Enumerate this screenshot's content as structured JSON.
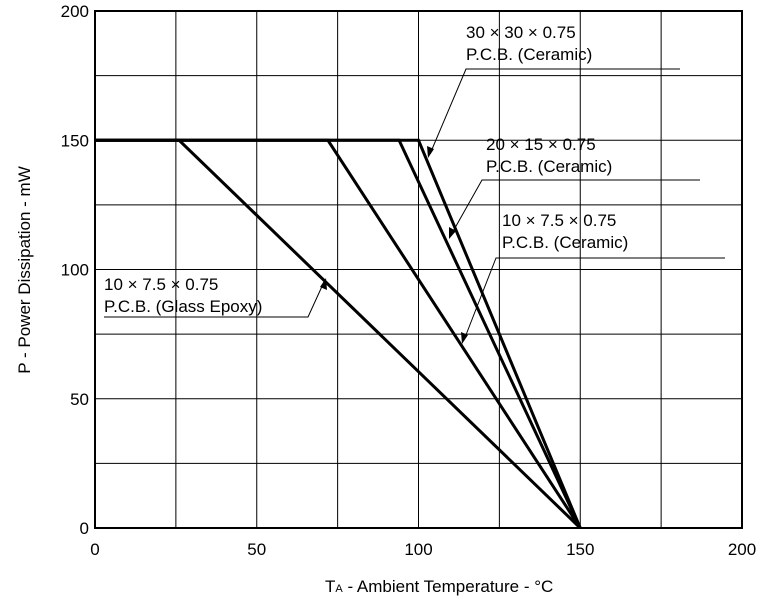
{
  "chart_data": {
    "type": "line",
    "title": "",
    "xlabel_prefix": "T",
    "xlabel_sub": "A",
    "xlabel_rest": " -  Ambient Temperature  - °C",
    "ylabel": "P -  Power Dissipation  - mW",
    "xlim": [
      0,
      200
    ],
    "ylim": [
      0,
      200
    ],
    "xticks": [
      0,
      50,
      100,
      150,
      200
    ],
    "yticks": [
      0,
      50,
      100,
      150,
      200
    ],
    "grid": true,
    "series": [
      {
        "name": "30 × 30 × 0.75 P.C.B. (Ceramic)",
        "x": [
          0,
          100,
          150
        ],
        "y": [
          150,
          150,
          0
        ]
      },
      {
        "name": "20 × 15 × 0.75 P.C.B. (Ceramic)",
        "x": [
          0,
          94,
          150
        ],
        "y": [
          150,
          150,
          0
        ]
      },
      {
        "name": "10 × 7.5 × 0.75 P.C.B. (Ceramic)",
        "x": [
          0,
          72,
          150
        ],
        "y": [
          150,
          150,
          0
        ]
      },
      {
        "name": "10 × 7.5 × 0.75 P.C.B. (Glass Epoxy)",
        "x": [
          0,
          26,
          150
        ],
        "y": [
          150,
          150,
          0
        ]
      }
    ],
    "annotations": [
      {
        "line1": "30 × 30 × 0.75",
        "line2": "P.C.B. (Ceramic)"
      },
      {
        "line1": "20 × 15 × 0.75",
        "line2": "P.C.B. (Ceramic)"
      },
      {
        "line1": "10 × 7.5 × 0.75",
        "line2": "P.C.B. (Ceramic)"
      },
      {
        "line1": "10 × 7.5 × 0.75",
        "line2": "P.C.B. (Glass Epoxy)"
      }
    ]
  },
  "colors": {
    "line": "#000000",
    "grid": "#000000",
    "background": "#ffffff"
  }
}
